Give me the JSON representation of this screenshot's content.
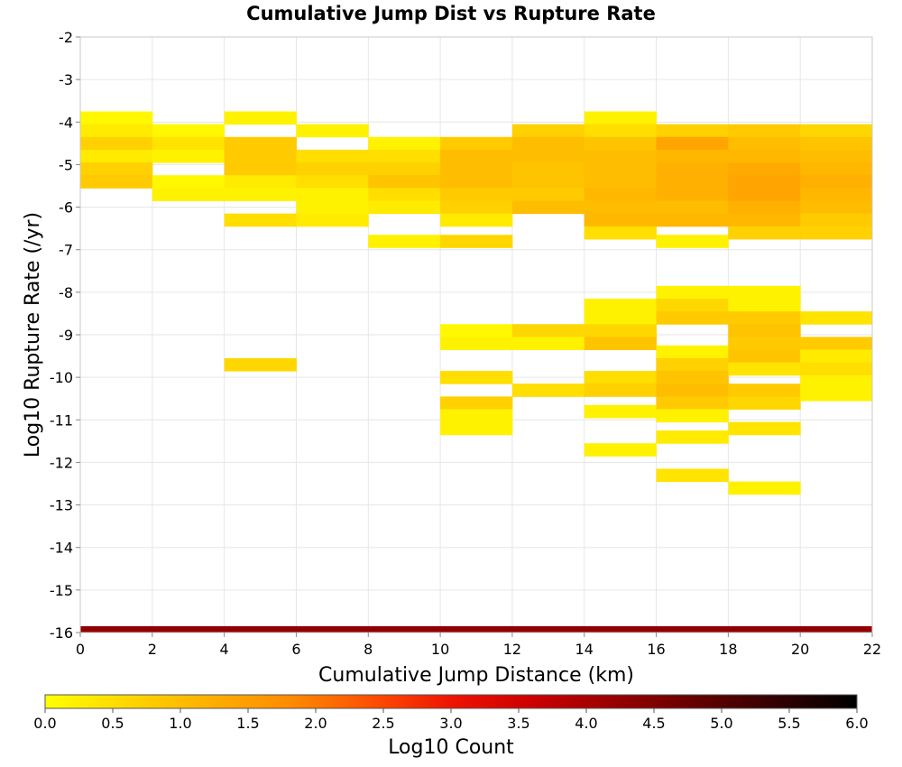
{
  "chart_data": {
    "type": "heatmap",
    "title": "Cumulative Jump Dist vs Rupture Rate",
    "xlabel": "Cumulative Jump Distance (km)",
    "ylabel": "Log10 Rupture Rate (/yr)",
    "xlim": [
      0,
      22
    ],
    "ylim": [
      -16,
      -2
    ],
    "x_ticks": [
      "0",
      "2",
      "4",
      "6",
      "8",
      "10",
      "12",
      "14",
      "16",
      "18",
      "20",
      "22"
    ],
    "y_ticks": [
      "-2",
      "-3",
      "-4",
      "-5",
      "-6",
      "-7",
      "-8",
      "-9",
      "-10",
      "-11",
      "-12",
      "-13",
      "-14",
      "-15",
      "-16"
    ],
    "grid": true,
    "x_bin_width": 2,
    "y_bin_height": 0.3,
    "colorbar": {
      "label": "Log10 Count",
      "range": [
        0,
        6
      ],
      "ticks": [
        "0.0",
        "0.5",
        "1.0",
        "1.5",
        "2.0",
        "2.5",
        "3.0",
        "3.5",
        "4.0",
        "4.5",
        "5.0",
        "5.5",
        "6.0"
      ],
      "colors": [
        "#ffff00",
        "#ffd700",
        "#ffb000",
        "#ff8c00",
        "#ff5000",
        "#ee1400",
        "#cc0000",
        "#990000",
        "#660000",
        "#330000",
        "#000000"
      ]
    },
    "cells": [
      {
        "x": 0,
        "y": -3.9,
        "v": 0.1
      },
      {
        "x": 0,
        "y": -4.2,
        "v": 0.3
      },
      {
        "x": 0,
        "y": -4.5,
        "v": 0.7
      },
      {
        "x": 0,
        "y": -4.8,
        "v": 0.3
      },
      {
        "x": 0,
        "y": -5.1,
        "v": 0.7
      },
      {
        "x": 0,
        "y": -5.4,
        "v": 0.8
      },
      {
        "x": 2,
        "y": -4.2,
        "v": 0.1
      },
      {
        "x": 2,
        "y": -4.5,
        "v": 0.4
      },
      {
        "x": 2,
        "y": -4.8,
        "v": 0.2
      },
      {
        "x": 2,
        "y": -5.4,
        "v": 0.1
      },
      {
        "x": 2,
        "y": -5.7,
        "v": 0.2
      },
      {
        "x": 4,
        "y": -3.9,
        "v": 0.2
      },
      {
        "x": 4,
        "y": -4.5,
        "v": 0.8
      },
      {
        "x": 4,
        "y": -4.8,
        "v": 0.8
      },
      {
        "x": 4,
        "y": -5.1,
        "v": 0.8
      },
      {
        "x": 4,
        "y": -5.4,
        "v": 0.3
      },
      {
        "x": 4,
        "y": -5.7,
        "v": 0.2
      },
      {
        "x": 4,
        "y": -6.3,
        "v": 0.5
      },
      {
        "x": 4,
        "y": -9.7,
        "v": 0.6
      },
      {
        "x": 6,
        "y": -4.2,
        "v": 0.2
      },
      {
        "x": 6,
        "y": -4.8,
        "v": 0.5
      },
      {
        "x": 6,
        "y": -5.1,
        "v": 0.7
      },
      {
        "x": 6,
        "y": -5.4,
        "v": 0.5
      },
      {
        "x": 6,
        "y": -5.7,
        "v": 0.2
      },
      {
        "x": 6,
        "y": -6.0,
        "v": 0.2
      },
      {
        "x": 6,
        "y": -6.3,
        "v": 0.3
      },
      {
        "x": 8,
        "y": -4.5,
        "v": 0.2
      },
      {
        "x": 8,
        "y": -4.8,
        "v": 0.5
      },
      {
        "x": 8,
        "y": -5.1,
        "v": 0.7
      },
      {
        "x": 8,
        "y": -5.4,
        "v": 0.9
      },
      {
        "x": 8,
        "y": -5.7,
        "v": 0.5
      },
      {
        "x": 8,
        "y": -6.0,
        "v": 0.3
      },
      {
        "x": 8,
        "y": -6.8,
        "v": 0.2
      },
      {
        "x": 10,
        "y": -4.5,
        "v": 0.8
      },
      {
        "x": 10,
        "y": -4.8,
        "v": 1.0
      },
      {
        "x": 10,
        "y": -5.1,
        "v": 1.0
      },
      {
        "x": 10,
        "y": -5.4,
        "v": 1.0
      },
      {
        "x": 10,
        "y": -5.7,
        "v": 0.8
      },
      {
        "x": 10,
        "y": -6.0,
        "v": 0.7
      },
      {
        "x": 10,
        "y": -6.3,
        "v": 0.3
      },
      {
        "x": 10,
        "y": -6.8,
        "v": 0.6
      },
      {
        "x": 10,
        "y": -8.9,
        "v": 0.1
      },
      {
        "x": 10,
        "y": -9.2,
        "v": 0.2
      },
      {
        "x": 10,
        "y": -10.0,
        "v": 0.5
      },
      {
        "x": 10,
        "y": -10.6,
        "v": 0.7
      },
      {
        "x": 10,
        "y": -10.9,
        "v": 0.2
      },
      {
        "x": 10,
        "y": -11.2,
        "v": 0.2
      },
      {
        "x": 12,
        "y": -4.2,
        "v": 0.7
      },
      {
        "x": 12,
        "y": -4.5,
        "v": 1.0
      },
      {
        "x": 12,
        "y": -4.8,
        "v": 1.0
      },
      {
        "x": 12,
        "y": -5.1,
        "v": 0.9
      },
      {
        "x": 12,
        "y": -5.4,
        "v": 0.9
      },
      {
        "x": 12,
        "y": -5.7,
        "v": 0.8
      },
      {
        "x": 12,
        "y": -6.0,
        "v": 1.0
      },
      {
        "x": 12,
        "y": -8.9,
        "v": 0.6
      },
      {
        "x": 12,
        "y": -9.2,
        "v": 0.2
      },
      {
        "x": 12,
        "y": -10.3,
        "v": 0.5
      },
      {
        "x": 14,
        "y": -3.9,
        "v": 0.2
      },
      {
        "x": 14,
        "y": -4.2,
        "v": 0.5
      },
      {
        "x": 14,
        "y": -4.5,
        "v": 0.9
      },
      {
        "x": 14,
        "y": -4.8,
        "v": 1.0
      },
      {
        "x": 14,
        "y": -5.1,
        "v": 1.0
      },
      {
        "x": 14,
        "y": -5.4,
        "v": 1.0
      },
      {
        "x": 14,
        "y": -5.7,
        "v": 1.1
      },
      {
        "x": 14,
        "y": -6.0,
        "v": 1.0
      },
      {
        "x": 14,
        "y": -6.3,
        "v": 1.1
      },
      {
        "x": 14,
        "y": -6.6,
        "v": 0.5
      },
      {
        "x": 14,
        "y": -8.3,
        "v": 0.2
      },
      {
        "x": 14,
        "y": -8.6,
        "v": 0.2
      },
      {
        "x": 14,
        "y": -8.9,
        "v": 0.6
      },
      {
        "x": 14,
        "y": -9.2,
        "v": 0.9
      },
      {
        "x": 14,
        "y": -10.0,
        "v": 0.5
      },
      {
        "x": 14,
        "y": -10.3,
        "v": 0.7
      },
      {
        "x": 14,
        "y": -10.8,
        "v": 0.2
      },
      {
        "x": 14,
        "y": -11.7,
        "v": 0.2
      },
      {
        "x": 16,
        "y": -4.2,
        "v": 0.7
      },
      {
        "x": 16,
        "y": -4.5,
        "v": 1.4
      },
      {
        "x": 16,
        "y": -4.8,
        "v": 1.1
      },
      {
        "x": 16,
        "y": -5.1,
        "v": 1.2
      },
      {
        "x": 16,
        "y": -5.4,
        "v": 1.2
      },
      {
        "x": 16,
        "y": -5.7,
        "v": 1.2
      },
      {
        "x": 16,
        "y": -6.0,
        "v": 1.0
      },
      {
        "x": 16,
        "y": -6.3,
        "v": 1.1
      },
      {
        "x": 16,
        "y": -6.8,
        "v": 0.2
      },
      {
        "x": 16,
        "y": -8.0,
        "v": 0.2
      },
      {
        "x": 16,
        "y": -8.3,
        "v": 0.6
      },
      {
        "x": 16,
        "y": -8.6,
        "v": 0.8
      },
      {
        "x": 16,
        "y": -9.4,
        "v": 0.2
      },
      {
        "x": 16,
        "y": -9.7,
        "v": 0.7
      },
      {
        "x": 16,
        "y": -10.0,
        "v": 0.9
      },
      {
        "x": 16,
        "y": -10.3,
        "v": 1.0
      },
      {
        "x": 16,
        "y": -10.6,
        "v": 0.8
      },
      {
        "x": 16,
        "y": -10.9,
        "v": 0.2
      },
      {
        "x": 16,
        "y": -11.4,
        "v": 0.3
      },
      {
        "x": 16,
        "y": -12.3,
        "v": 0.4
      },
      {
        "x": 18,
        "y": -4.2,
        "v": 0.8
      },
      {
        "x": 18,
        "y": -4.5,
        "v": 1.0
      },
      {
        "x": 18,
        "y": -4.8,
        "v": 1.1
      },
      {
        "x": 18,
        "y": -5.1,
        "v": 1.3
      },
      {
        "x": 18,
        "y": -5.4,
        "v": 1.4
      },
      {
        "x": 18,
        "y": -5.7,
        "v": 1.4
      },
      {
        "x": 18,
        "y": -6.0,
        "v": 1.2
      },
      {
        "x": 18,
        "y": -6.3,
        "v": 1.1
      },
      {
        "x": 18,
        "y": -6.6,
        "v": 0.7
      },
      {
        "x": 18,
        "y": -8.0,
        "v": 0.2
      },
      {
        "x": 18,
        "y": -8.3,
        "v": 0.2
      },
      {
        "x": 18,
        "y": -8.6,
        "v": 0.8
      },
      {
        "x": 18,
        "y": -8.9,
        "v": 0.9
      },
      {
        "x": 18,
        "y": -9.2,
        "v": 0.8
      },
      {
        "x": 18,
        "y": -9.5,
        "v": 0.9
      },
      {
        "x": 18,
        "y": -9.8,
        "v": 0.4
      },
      {
        "x": 18,
        "y": -10.3,
        "v": 0.8
      },
      {
        "x": 18,
        "y": -10.6,
        "v": 0.6
      },
      {
        "x": 18,
        "y": -11.2,
        "v": 0.4
      },
      {
        "x": 18,
        "y": -12.6,
        "v": 0.2
      },
      {
        "x": 20,
        "y": -4.2,
        "v": 0.6
      },
      {
        "x": 20,
        "y": -4.5,
        "v": 0.9
      },
      {
        "x": 20,
        "y": -4.8,
        "v": 1.0
      },
      {
        "x": 20,
        "y": -5.1,
        "v": 1.1
      },
      {
        "x": 20,
        "y": -5.4,
        "v": 1.2
      },
      {
        "x": 20,
        "y": -5.7,
        "v": 1.1
      },
      {
        "x": 20,
        "y": -6.0,
        "v": 1.0
      },
      {
        "x": 20,
        "y": -6.3,
        "v": 0.8
      },
      {
        "x": 20,
        "y": -6.6,
        "v": 0.7
      },
      {
        "x": 20,
        "y": -8.6,
        "v": 0.4
      },
      {
        "x": 20,
        "y": -9.2,
        "v": 0.8
      },
      {
        "x": 20,
        "y": -9.5,
        "v": 0.3
      },
      {
        "x": 20,
        "y": -9.8,
        "v": 0.5
      },
      {
        "x": 20,
        "y": -10.1,
        "v": 0.2
      },
      {
        "x": 20,
        "y": -10.4,
        "v": 0.2
      },
      {
        "x": 0,
        "y": -16.0,
        "v": 4.3
      },
      {
        "x": 2,
        "y": -16.0,
        "v": 4.3
      },
      {
        "x": 4,
        "y": -16.0,
        "v": 4.3
      },
      {
        "x": 6,
        "y": -16.0,
        "v": 4.3
      },
      {
        "x": 8,
        "y": -16.0,
        "v": 4.3
      },
      {
        "x": 10,
        "y": -16.0,
        "v": 4.3
      },
      {
        "x": 12,
        "y": -16.0,
        "v": 4.3
      },
      {
        "x": 14,
        "y": -16.0,
        "v": 4.3
      },
      {
        "x": 16,
        "y": -16.0,
        "v": 4.3
      },
      {
        "x": 18,
        "y": -16.0,
        "v": 4.3
      },
      {
        "x": 20,
        "y": -16.0,
        "v": 4.3
      }
    ]
  }
}
